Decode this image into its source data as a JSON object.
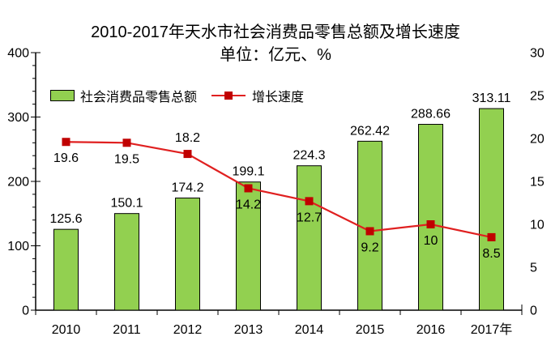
{
  "title": "2010-2017年天水市社会消费品零售总额及增长速度",
  "subtitle": "单位：亿元、%",
  "legend": {
    "bars": "社会消费品零售总额",
    "line": "增长速度"
  },
  "colors": {
    "bar_fill": "#92d050",
    "bar_border": "#000000",
    "line": "#e02020",
    "marker": "#c00000",
    "axis": "#000000",
    "text": "#000000",
    "background": "#ffffff"
  },
  "chart_data": {
    "type": "bar+line combo",
    "title": "2010-2017年天水市社会消费品零售总额及增长速度",
    "subtitle": "单位：亿元、%",
    "categories": [
      "2010",
      "2011",
      "2012",
      "2013",
      "2014",
      "2015",
      "2016",
      "2017年"
    ],
    "series": [
      {
        "name": "社会消费品零售总额",
        "type": "bar",
        "axis": "left",
        "unit": "亿元",
        "values": [
          125.6,
          150.1,
          174.2,
          199.1,
          224.3,
          262.42,
          288.66,
          313.11
        ]
      },
      {
        "name": "增长速度",
        "type": "line",
        "axis": "right",
        "unit": "%",
        "values": [
          19.6,
          19.5,
          18.2,
          14.2,
          12.7,
          9.2,
          10,
          8.5
        ],
        "label_positions": [
          "below",
          "below",
          "above",
          "below",
          "below",
          "below",
          "below",
          "below"
        ]
      }
    ],
    "left_axis": {
      "min": 0,
      "max": 400,
      "ticks": [
        0,
        100,
        200,
        300,
        400
      ],
      "minor_step": 20
    },
    "right_axis": {
      "min": 0,
      "max": 30,
      "ticks": [
        0,
        5,
        10,
        15,
        20,
        25,
        30
      ]
    },
    "grid": false,
    "legend_position": "upper-left"
  }
}
